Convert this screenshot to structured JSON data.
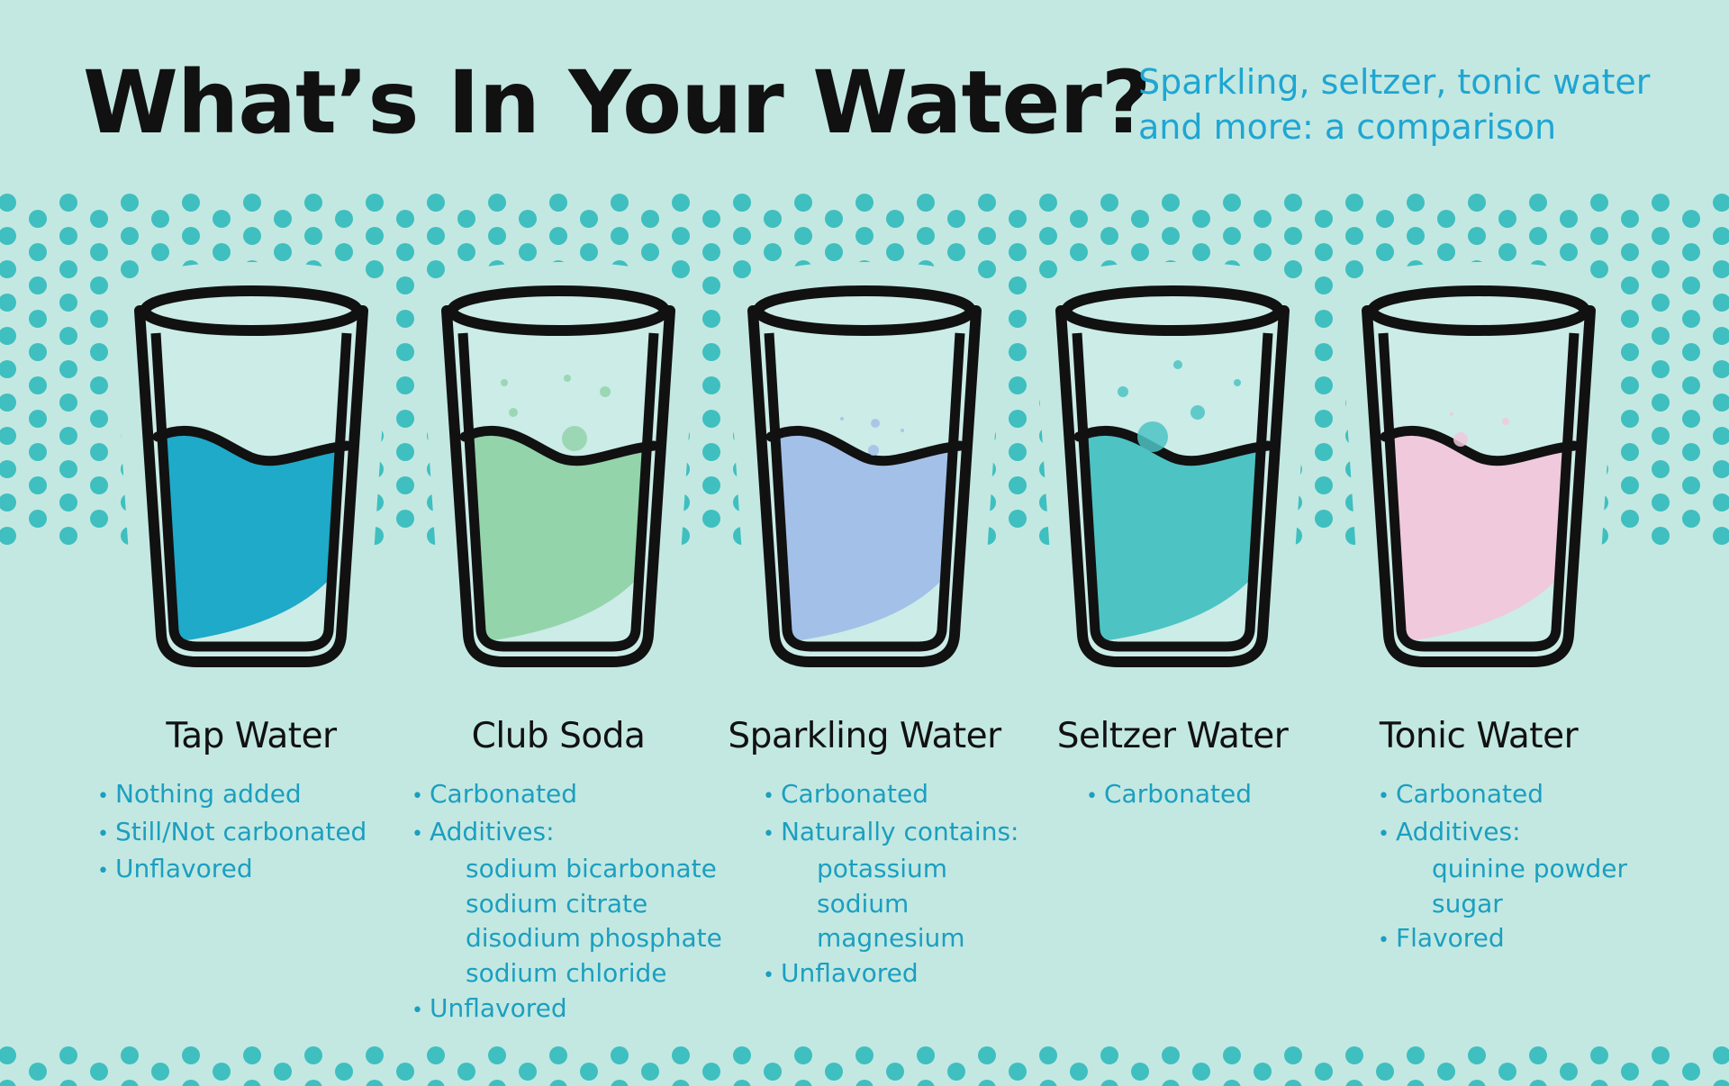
{
  "header": {
    "title": "What’s In Your Water?",
    "subtitle_lines": [
      "Sparkling, seltzer, tonic water",
      "and more: a comparison"
    ]
  },
  "colors": {
    "background": "#c3e8e2",
    "dots": "#3fbfbf",
    "text": "#1b9fc0",
    "glass_outline": "#111111"
  },
  "waters": [
    {
      "name": "Tap Water",
      "liquid_color": "#1eaac8",
      "items": [
        {
          "text": "Nothing added",
          "bullet": true
        },
        {
          "text": "Still/Not carbonated",
          "bullet": true
        },
        {
          "text": "Unflavored",
          "bullet": true
        }
      ]
    },
    {
      "name": "Club Soda",
      "liquid_color": "#93d4ab",
      "items": [
        {
          "text": "Carbonated",
          "bullet": true
        },
        {
          "text": "Additives:",
          "bullet": true
        },
        {
          "text": "sodium bicarbonate",
          "bullet": false
        },
        {
          "text": "sodium citrate",
          "bullet": false
        },
        {
          "text": "disodium phosphate",
          "bullet": false
        },
        {
          "text": "sodium chloride",
          "bullet": false
        },
        {
          "text": "Unflavored",
          "bullet": true
        }
      ]
    },
    {
      "name": "Sparkling Water",
      "liquid_color": "#a3c0e8",
      "items": [
        {
          "text": "Carbonated",
          "bullet": true
        },
        {
          "text": "Naturally contains:",
          "bullet": true
        },
        {
          "text": "potassium",
          "bullet": false
        },
        {
          "text": "sodium",
          "bullet": false
        },
        {
          "text": "magnesium",
          "bullet": false
        },
        {
          "text": "Unflavored",
          "bullet": true
        }
      ]
    },
    {
      "name": "Seltzer Water",
      "liquid_color": "#4dc3c4",
      "items": [
        {
          "text": "Carbonated",
          "bullet": true
        }
      ]
    },
    {
      "name": "Tonic Water",
      "liquid_color": "#f0c9dc",
      "items": [
        {
          "text": "Carbonated",
          "bullet": true
        },
        {
          "text": "Additives:",
          "bullet": true
        },
        {
          "text": "quinine powder",
          "bullet": false
        },
        {
          "text": "sugar",
          "bullet": false
        },
        {
          "text": "Flavored",
          "bullet": true
        }
      ]
    }
  ]
}
